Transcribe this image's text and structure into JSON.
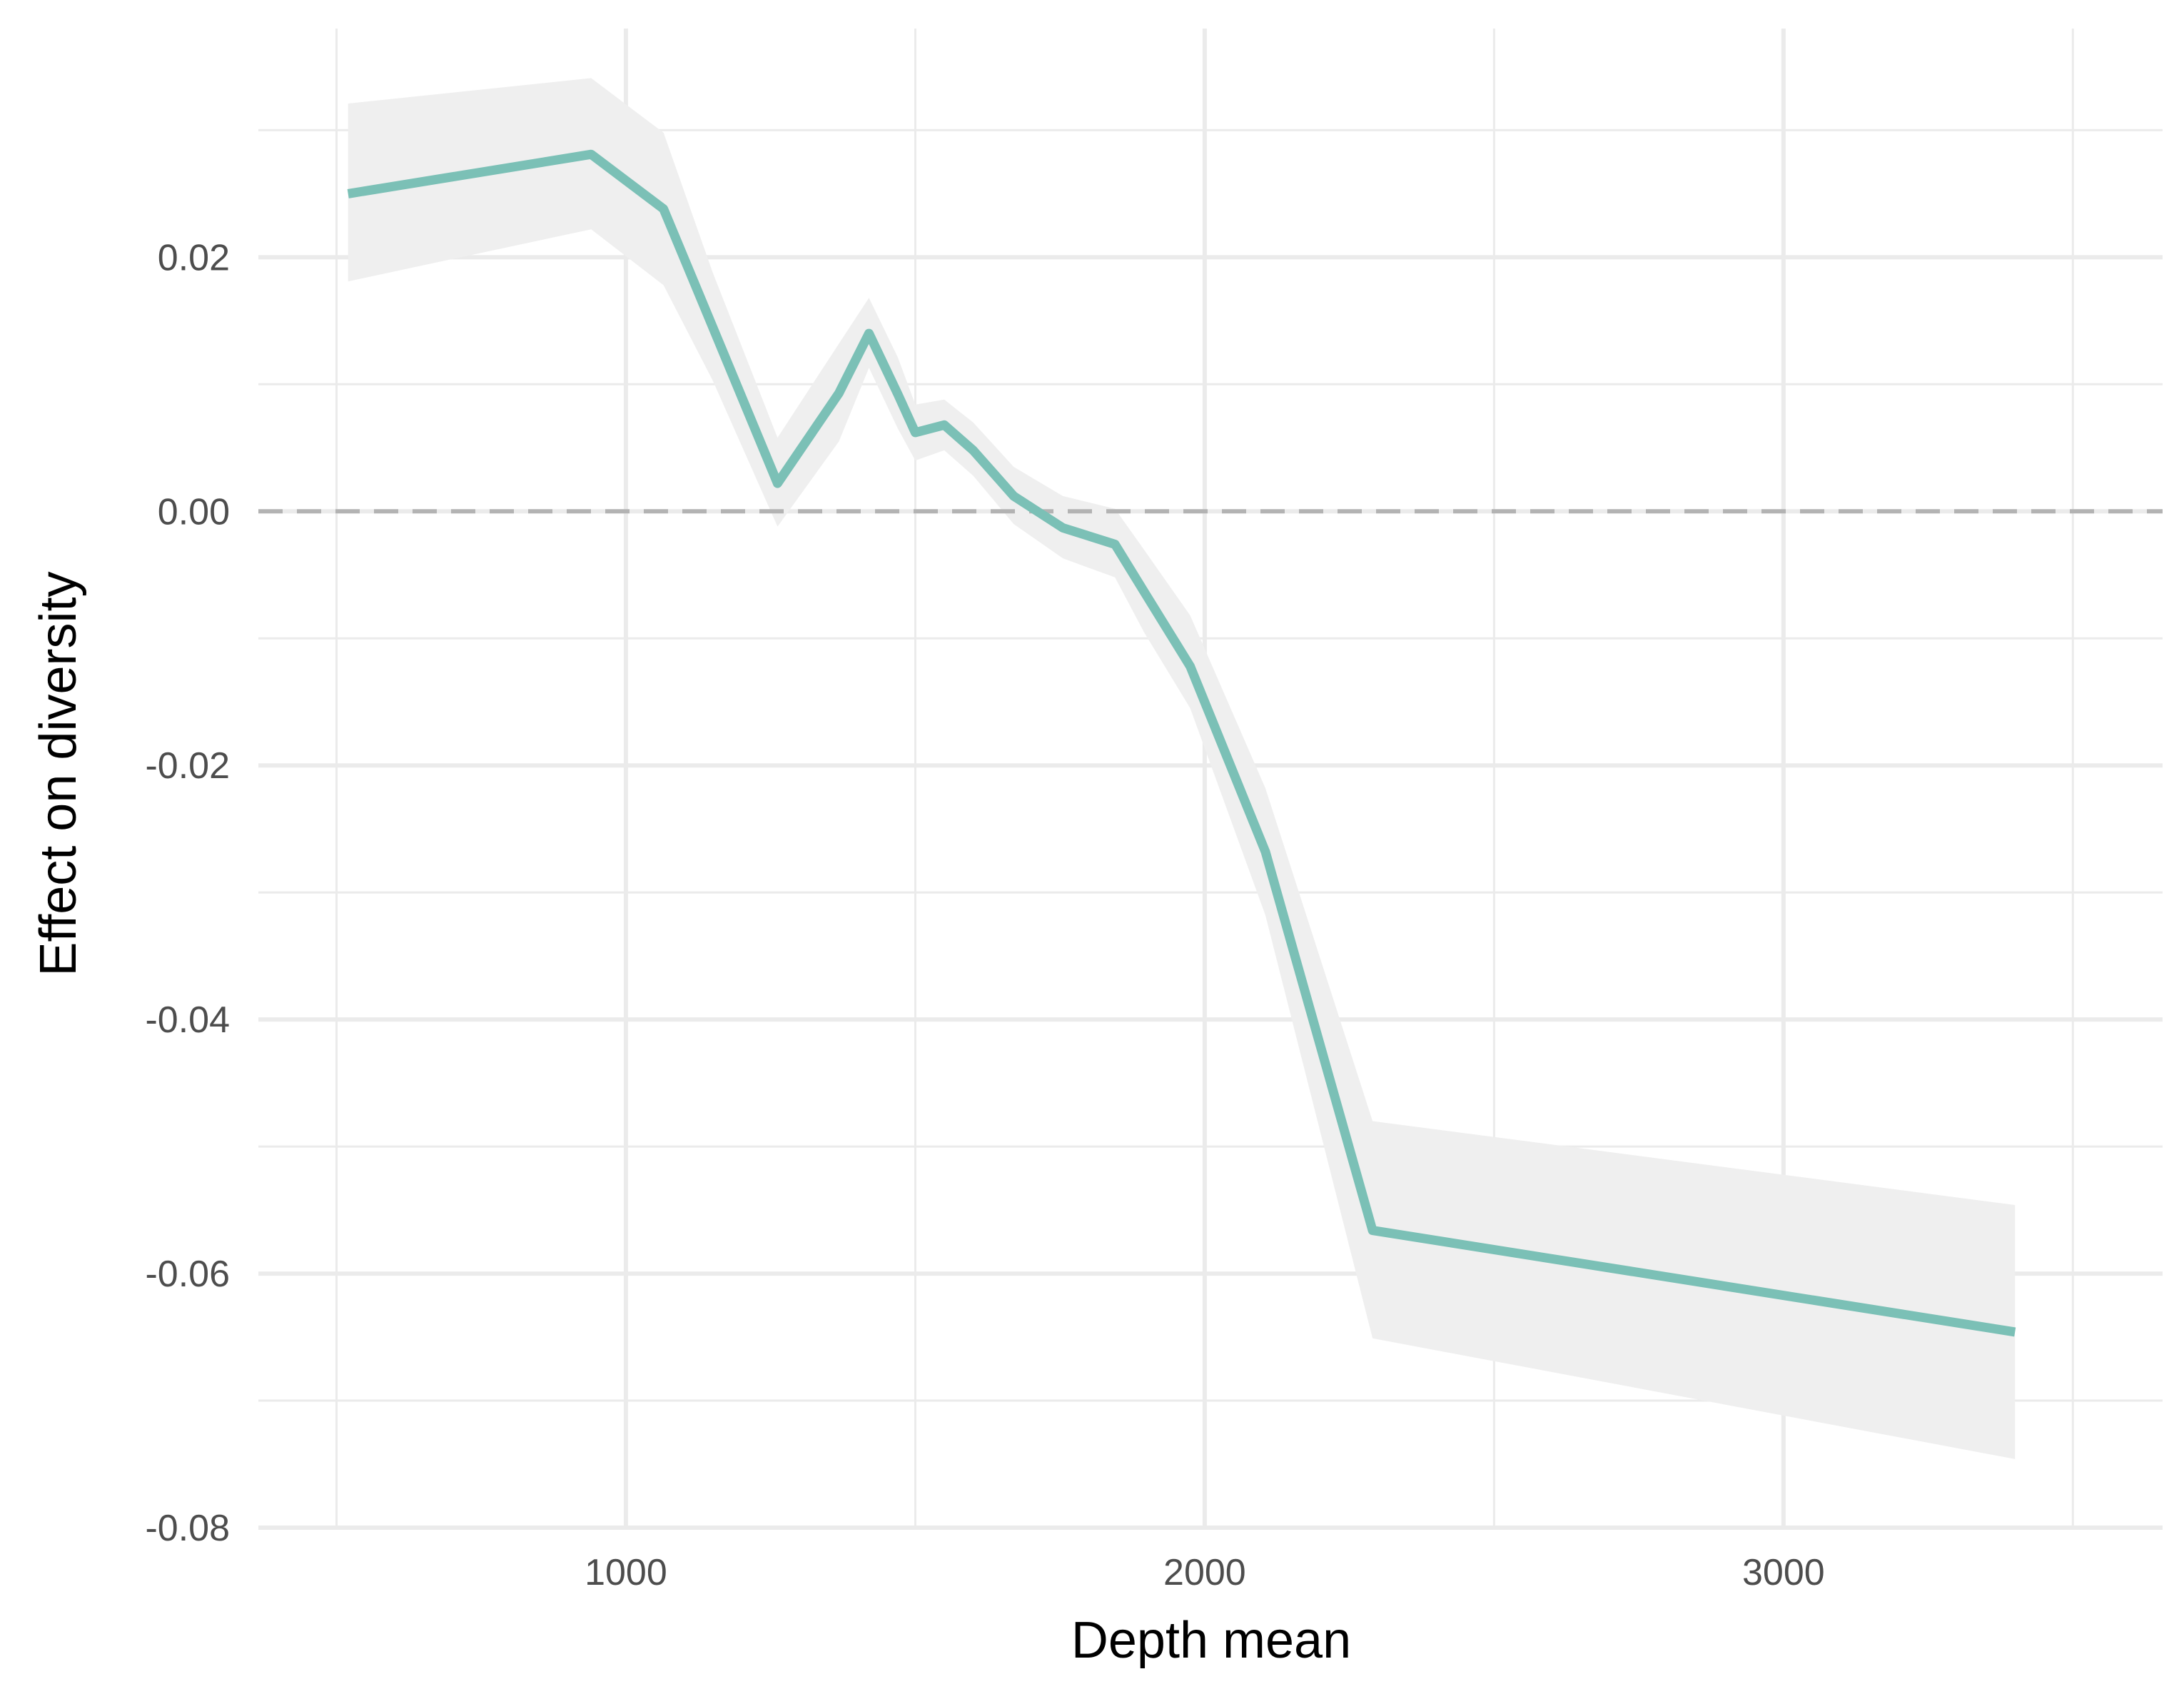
{
  "chart_data": {
    "type": "line",
    "title": "",
    "xlabel": "Depth mean",
    "ylabel": "Effect on diversity",
    "xlim": [
      365,
      3655
    ],
    "ylim": [
      -0.08,
      0.038
    ],
    "x_ticks": [
      1000,
      2000,
      3000
    ],
    "x_tick_labels": [
      "1000",
      "2000",
      "3000"
    ],
    "y_ticks": [
      -0.08,
      -0.06,
      -0.04,
      -0.02,
      0.0,
      0.02
    ],
    "y_tick_labels": [
      "-0.08",
      "-0.06",
      "-0.04",
      "-0.02",
      "0.00",
      "0.02"
    ],
    "grid": true,
    "reference_line": {
      "y": 0.0,
      "style": "dashed",
      "color": "#b3b3b3"
    },
    "series": [
      {
        "color": "#7bc0b6",
        "band_color": "#efefef",
        "x": [
          520,
          940,
          1065,
          1150,
          1262,
          1368,
          1420,
          1470,
          1500,
          1550,
          1600,
          1670,
          1755,
          1845,
          1895,
          1975,
          2105,
          2290,
          3400
        ],
        "y": [
          0.025,
          0.0281,
          0.0238,
          0.0145,
          0.0022,
          0.0093,
          0.014,
          0.0092,
          0.0062,
          0.0068,
          0.0048,
          0.0012,
          -0.0013,
          -0.0026,
          -0.0063,
          -0.0122,
          -0.0268,
          -0.0566,
          -0.0646
        ],
        "lower": [
          0.0181,
          0.0222,
          0.0178,
          0.0103,
          -0.0012,
          0.0055,
          0.0113,
          0.0065,
          0.004,
          0.0048,
          0.0028,
          -0.001,
          -0.0037,
          -0.0052,
          -0.0095,
          -0.0155,
          -0.0318,
          -0.0651,
          -0.0746
        ],
        "upper": [
          0.0321,
          0.0341,
          0.0298,
          0.0188,
          0.0058,
          0.0132,
          0.0168,
          0.0121,
          0.0084,
          0.0088,
          0.007,
          0.0035,
          0.0012,
          0.0002,
          -0.003,
          -0.0082,
          -0.0218,
          -0.048,
          -0.0546
        ]
      }
    ]
  }
}
